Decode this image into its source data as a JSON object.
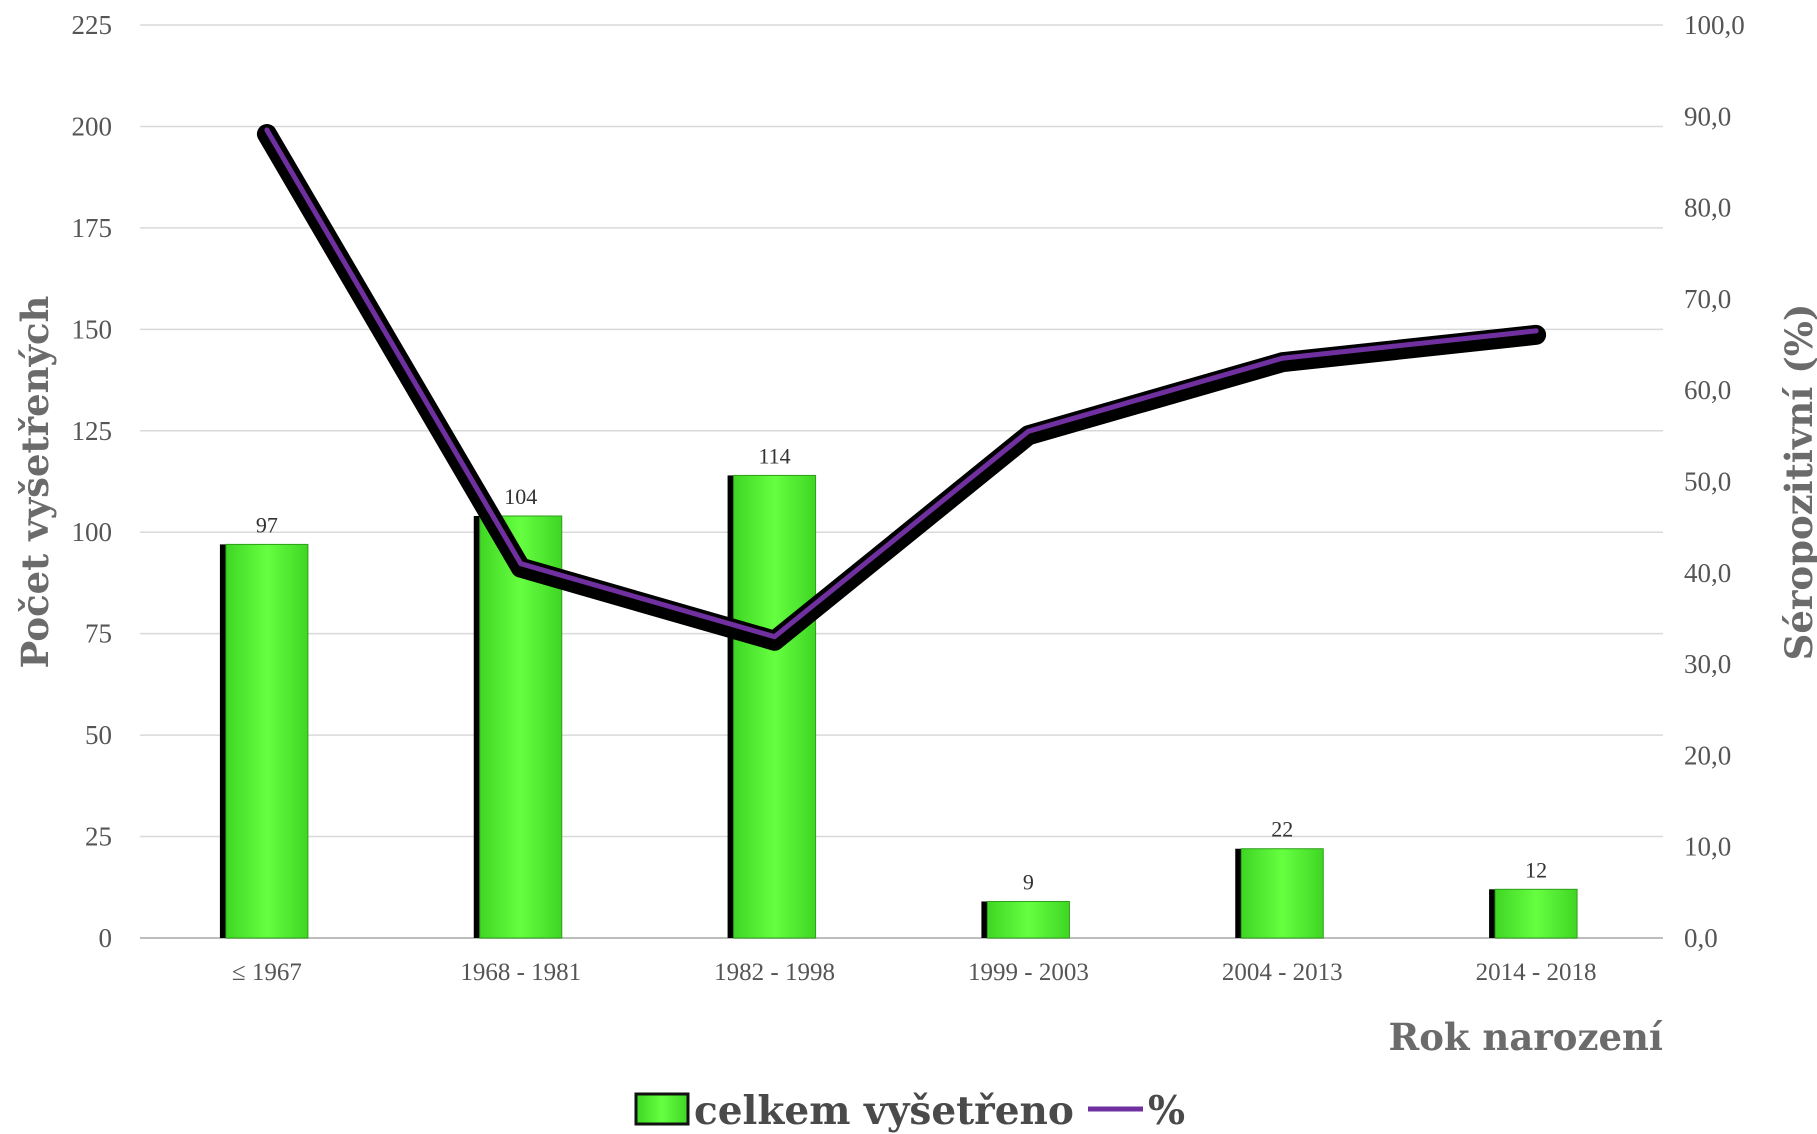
{
  "chart_data": {
    "type": "bar",
    "categories": [
      "≤ 1967",
      "1968 - 1981",
      "1982 - 1998",
      "1999 - 2003",
      "2004 - 2013",
      "2014 - 2018"
    ],
    "series": [
      {
        "name": "celkem vyšetřeno",
        "type": "bar",
        "axis": "left",
        "values": [
          97,
          104,
          114,
          9,
          22,
          12
        ],
        "data_labels": [
          "97",
          "104",
          "114",
          "9",
          "22",
          "12"
        ],
        "color": "#55ee33"
      },
      {
        "name": "%",
        "type": "line",
        "axis": "right",
        "values": [
          88.5,
          41.0,
          33.0,
          55.5,
          63.5,
          66.5
        ],
        "color": "#7030a0"
      }
    ],
    "xlabel": "Rok narození",
    "ylabel": "Počet vyšetřených",
    "y2label": "Séropozitivní (%)",
    "ylim": [
      0,
      225
    ],
    "y2lim": [
      0,
      100
    ],
    "yticks": [
      "0",
      "25",
      "50",
      "75",
      "100",
      "125",
      "150",
      "175",
      "200",
      "225"
    ],
    "y2ticks": [
      "0,0",
      "10,0",
      "20,0",
      "30,0",
      "40,0",
      "50,0",
      "60,0",
      "70,0",
      "80,0",
      "90,0",
      "100,0"
    ],
    "grid": true,
    "legend_position": "bottom",
    "legend": [
      "celkem vyšetřeno",
      "%"
    ]
  }
}
